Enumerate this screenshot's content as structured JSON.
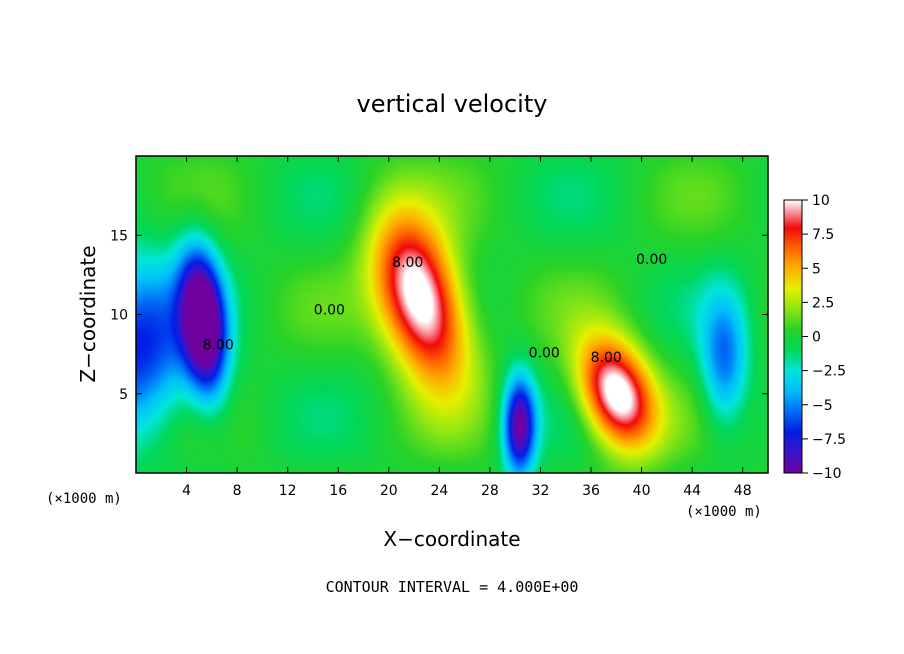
{
  "chart_data": {
    "type": "heatmap",
    "title": "vertical velocity",
    "xlabel": "X−coordinate",
    "ylabel": "Z−coordinate",
    "x_unit_label": "(×1000 m)",
    "y_unit_label": "(×1000 m)",
    "xlim": [
      0,
      50
    ],
    "ylim": [
      0,
      20
    ],
    "x_ticks": [
      4,
      8,
      12,
      16,
      20,
      24,
      28,
      32,
      36,
      40,
      44,
      48
    ],
    "y_ticks": [
      5,
      10,
      15
    ],
    "colorbar": {
      "range": [
        -10,
        10
      ],
      "ticks": [
        10,
        7.5,
        5,
        2.5,
        0,
        -2.5,
        -5,
        -7.5,
        -10
      ],
      "tick_labels": [
        "10",
        "7.5",
        "5",
        "2.5",
        "0",
        "−2.5",
        "−5",
        "−7.5",
        "−10"
      ]
    },
    "contour_labels": [
      {
        "text": "8.00",
        "x": 21.5,
        "z": 13
      },
      {
        "text": "0.00",
        "x": 15.3,
        "z": 10
      },
      {
        "text": "8.00",
        "x": 6.5,
        "z": 7.8
      },
      {
        "text": "0.00",
        "x": 32.3,
        "z": 7.3
      },
      {
        "text": "8.00",
        "x": 37.2,
        "z": 7
      },
      {
        "text": "0.00",
        "x": 40.8,
        "z": 13.2
      }
    ],
    "features": [
      {
        "name": "updraft",
        "x": 22.5,
        "z": 11,
        "peak": 12,
        "sx": 2.3,
        "sz": 3.6,
        "tilt": -0.28
      },
      {
        "name": "updraft",
        "x": 38,
        "z": 5,
        "peak": 11.5,
        "sx": 2.0,
        "sz": 2.4,
        "tilt": -0.25
      },
      {
        "name": "downdraft",
        "x": 5.3,
        "z": 9.5,
        "peak": -12,
        "sx": 1.2,
        "sz": 3.2,
        "tilt": -0.1
      },
      {
        "name": "downdraft",
        "x": 30.3,
        "z": 3,
        "peak": -10,
        "sx": 0.9,
        "sz": 2.2,
        "tilt": 0
      },
      {
        "name": "downdraft",
        "x": 46.5,
        "z": 7,
        "peak": -5.5,
        "sx": 1.3,
        "sz": 3,
        "tilt": 0
      }
    ],
    "contour_interval_text": "CONTOUR INTERVAL = 4.000E+00"
  }
}
